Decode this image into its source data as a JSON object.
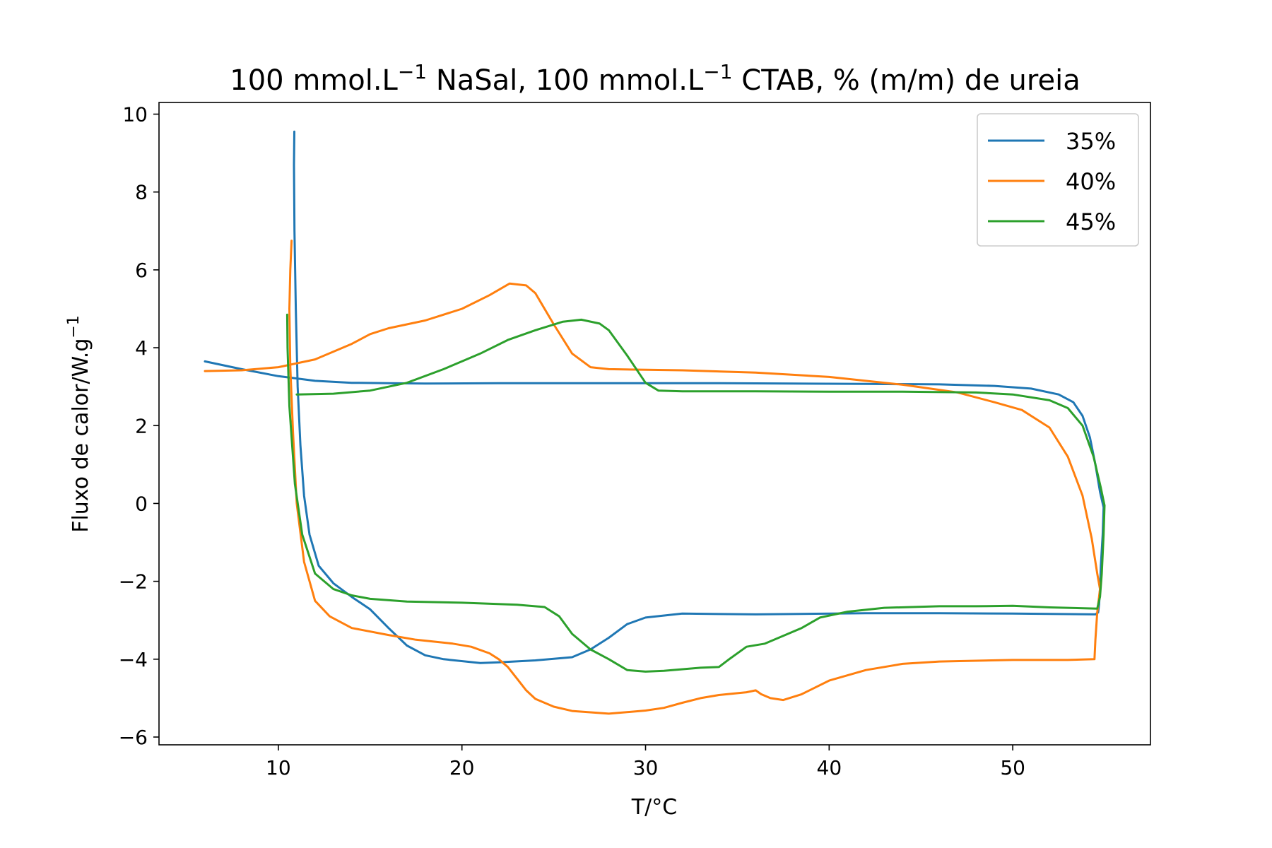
{
  "chart_data": {
    "type": "line",
    "title": {
      "part1": "100 mmol.L",
      "sup1": "−1",
      "part2": " NaSal, 100 mmol.L",
      "sup2": "−1",
      "part3": " CTAB, % (m/m) de ureia"
    },
    "xlabel": "T/°C",
    "ylabel": {
      "text": "Fluxo de calor/W.g",
      "sup": "−1"
    },
    "xlim": [
      3.5,
      57.5
    ],
    "ylim": [
      -6.2,
      10.3
    ],
    "xticks": [
      10,
      20,
      30,
      40,
      50
    ],
    "yticks": [
      10,
      8,
      6,
      4,
      2,
      0,
      -2,
      -4,
      -6
    ],
    "ytick_labels": [
      "10",
      "8",
      "6",
      "4",
      "2",
      "0",
      "−2",
      "−4",
      "−6"
    ],
    "legend_position": "top-right",
    "grid": false,
    "series": [
      {
        "name": "35%",
        "color": "#1f77b4",
        "points": [
          [
            6.0,
            3.65
          ],
          [
            8.0,
            3.45
          ],
          [
            10.0,
            3.27
          ],
          [
            12.0,
            3.15
          ],
          [
            14.0,
            3.1
          ],
          [
            16.0,
            3.09
          ],
          [
            18.0,
            3.08
          ],
          [
            22.0,
            3.09
          ],
          [
            26.0,
            3.09
          ],
          [
            30.0,
            3.09
          ],
          [
            34.0,
            3.09
          ],
          [
            38.0,
            3.08
          ],
          [
            42.0,
            3.07
          ],
          [
            46.0,
            3.06
          ],
          [
            49.0,
            3.02
          ],
          [
            51.0,
            2.95
          ],
          [
            52.5,
            2.8
          ],
          [
            53.3,
            2.6
          ],
          [
            53.8,
            2.25
          ],
          [
            54.2,
            1.7
          ],
          [
            54.5,
            1.0
          ],
          [
            54.75,
            0.3
          ],
          [
            54.9,
            0.0
          ],
          [
            54.95,
            -0.1
          ],
          [
            54.9,
            -0.8
          ],
          [
            54.8,
            -1.6
          ],
          [
            54.75,
            -2.2
          ],
          [
            54.7,
            -2.6
          ],
          [
            54.65,
            -2.8
          ],
          [
            54.5,
            -2.85
          ],
          [
            50.0,
            -2.83
          ],
          [
            46.0,
            -2.82
          ],
          [
            42.0,
            -2.82
          ],
          [
            38.0,
            -2.84
          ],
          [
            36.0,
            -2.85
          ],
          [
            34.0,
            -2.84
          ],
          [
            32.0,
            -2.83
          ],
          [
            30.0,
            -2.93
          ],
          [
            29.0,
            -3.1
          ],
          [
            28.0,
            -3.45
          ],
          [
            27.0,
            -3.75
          ],
          [
            26.0,
            -3.95
          ],
          [
            24.0,
            -4.03
          ],
          [
            22.0,
            -4.08
          ],
          [
            21.0,
            -4.1
          ],
          [
            19.0,
            -4.0
          ],
          [
            18.0,
            -3.9
          ],
          [
            17.0,
            -3.65
          ],
          [
            16.0,
            -3.2
          ],
          [
            15.0,
            -2.72
          ],
          [
            14.0,
            -2.4
          ],
          [
            13.0,
            -2.05
          ],
          [
            12.2,
            -1.6
          ],
          [
            11.7,
            -0.8
          ],
          [
            11.4,
            0.2
          ],
          [
            11.2,
            1.5
          ],
          [
            11.05,
            3.0
          ],
          [
            10.95,
            5.0
          ],
          [
            10.88,
            7.0
          ],
          [
            10.85,
            8.7
          ],
          [
            10.87,
            9.55
          ]
        ]
      },
      {
        "name": "40%",
        "color": "#ff7f0e",
        "points": [
          [
            6.0,
            3.4
          ],
          [
            8.0,
            3.42
          ],
          [
            10.0,
            3.5
          ],
          [
            12.0,
            3.7
          ],
          [
            14.0,
            4.1
          ],
          [
            15.0,
            4.35
          ],
          [
            16.0,
            4.5
          ],
          [
            18.0,
            4.7
          ],
          [
            20.0,
            5.0
          ],
          [
            21.5,
            5.35
          ],
          [
            22.6,
            5.65
          ],
          [
            23.5,
            5.6
          ],
          [
            24.0,
            5.4
          ],
          [
            25.0,
            4.6
          ],
          [
            26.0,
            3.85
          ],
          [
            27.0,
            3.5
          ],
          [
            28.0,
            3.45
          ],
          [
            32.0,
            3.42
          ],
          [
            36.0,
            3.36
          ],
          [
            40.0,
            3.25
          ],
          [
            44.0,
            3.05
          ],
          [
            47.0,
            2.85
          ],
          [
            49.0,
            2.6
          ],
          [
            50.5,
            2.4
          ],
          [
            52.0,
            1.95
          ],
          [
            53.0,
            1.2
          ],
          [
            53.8,
            0.2
          ],
          [
            54.3,
            -0.9
          ],
          [
            54.6,
            -1.8
          ],
          [
            54.75,
            -2.2
          ],
          [
            54.6,
            -2.8
          ],
          [
            54.5,
            -3.5
          ],
          [
            54.45,
            -4.0
          ],
          [
            53.0,
            -4.02
          ],
          [
            50.0,
            -4.02
          ],
          [
            46.0,
            -4.06
          ],
          [
            44.0,
            -4.12
          ],
          [
            42.0,
            -4.28
          ],
          [
            40.0,
            -4.55
          ],
          [
            38.5,
            -4.9
          ],
          [
            37.5,
            -5.05
          ],
          [
            36.8,
            -5.0
          ],
          [
            36.3,
            -4.9
          ],
          [
            36.0,
            -4.8
          ],
          [
            35.5,
            -4.85
          ],
          [
            34.0,
            -4.92
          ],
          [
            33.0,
            -5.0
          ],
          [
            32.0,
            -5.12
          ],
          [
            31.0,
            -5.25
          ],
          [
            30.0,
            -5.32
          ],
          [
            28.0,
            -5.4
          ],
          [
            26.0,
            -5.33
          ],
          [
            25.0,
            -5.22
          ],
          [
            24.0,
            -5.02
          ],
          [
            23.5,
            -4.8
          ],
          [
            23.0,
            -4.5
          ],
          [
            22.5,
            -4.2
          ],
          [
            22.0,
            -4.0
          ],
          [
            21.5,
            -3.85
          ],
          [
            20.5,
            -3.68
          ],
          [
            19.5,
            -3.6
          ],
          [
            18.5,
            -3.55
          ],
          [
            17.5,
            -3.5
          ],
          [
            16.0,
            -3.38
          ],
          [
            14.0,
            -3.2
          ],
          [
            12.8,
            -2.9
          ],
          [
            12.0,
            -2.5
          ],
          [
            11.4,
            -1.5
          ],
          [
            11.0,
            0.0
          ],
          [
            10.8,
            1.8
          ],
          [
            10.65,
            3.5
          ],
          [
            10.6,
            5.0
          ],
          [
            10.65,
            6.0
          ],
          [
            10.72,
            6.75
          ]
        ]
      },
      {
        "name": "45%",
        "color": "#2ca02c",
        "points": [
          [
            11.0,
            2.8
          ],
          [
            13.0,
            2.82
          ],
          [
            15.0,
            2.9
          ],
          [
            17.0,
            3.1
          ],
          [
            19.0,
            3.45
          ],
          [
            21.0,
            3.85
          ],
          [
            22.5,
            4.2
          ],
          [
            24.0,
            4.45
          ],
          [
            25.5,
            4.67
          ],
          [
            26.5,
            4.72
          ],
          [
            27.5,
            4.62
          ],
          [
            28.0,
            4.45
          ],
          [
            29.0,
            3.8
          ],
          [
            30.0,
            3.1
          ],
          [
            30.7,
            2.9
          ],
          [
            32.0,
            2.88
          ],
          [
            36.0,
            2.88
          ],
          [
            40.0,
            2.87
          ],
          [
            44.0,
            2.87
          ],
          [
            48.0,
            2.85
          ],
          [
            50.0,
            2.8
          ],
          [
            52.0,
            2.65
          ],
          [
            53.0,
            2.45
          ],
          [
            53.8,
            2.0
          ],
          [
            54.4,
            1.2
          ],
          [
            54.8,
            0.4
          ],
          [
            55.0,
            -0.05
          ],
          [
            54.95,
            -0.8
          ],
          [
            54.85,
            -1.8
          ],
          [
            54.75,
            -2.4
          ],
          [
            54.6,
            -2.7
          ],
          [
            52.0,
            -2.67
          ],
          [
            50.0,
            -2.63
          ],
          [
            48.0,
            -2.64
          ],
          [
            46.0,
            -2.64
          ],
          [
            43.0,
            -2.68
          ],
          [
            41.0,
            -2.78
          ],
          [
            39.5,
            -2.93
          ],
          [
            38.5,
            -3.2
          ],
          [
            37.5,
            -3.4
          ],
          [
            36.5,
            -3.6
          ],
          [
            35.5,
            -3.68
          ],
          [
            34.5,
            -4.02
          ],
          [
            34.0,
            -4.2
          ],
          [
            33.0,
            -4.22
          ],
          [
            31.0,
            -4.3
          ],
          [
            30.0,
            -4.32
          ],
          [
            29.0,
            -4.28
          ],
          [
            28.0,
            -4.0
          ],
          [
            27.0,
            -3.75
          ],
          [
            26.0,
            -3.35
          ],
          [
            25.3,
            -2.9
          ],
          [
            24.5,
            -2.66
          ],
          [
            23.0,
            -2.6
          ],
          [
            20.0,
            -2.55
          ],
          [
            17.0,
            -2.52
          ],
          [
            15.0,
            -2.45
          ],
          [
            14.0,
            -2.36
          ],
          [
            13.0,
            -2.2
          ],
          [
            12.0,
            -1.8
          ],
          [
            11.3,
            -0.8
          ],
          [
            10.9,
            0.5
          ],
          [
            10.6,
            2.5
          ],
          [
            10.5,
            4.0
          ],
          [
            10.48,
            4.85
          ]
        ]
      }
    ]
  }
}
